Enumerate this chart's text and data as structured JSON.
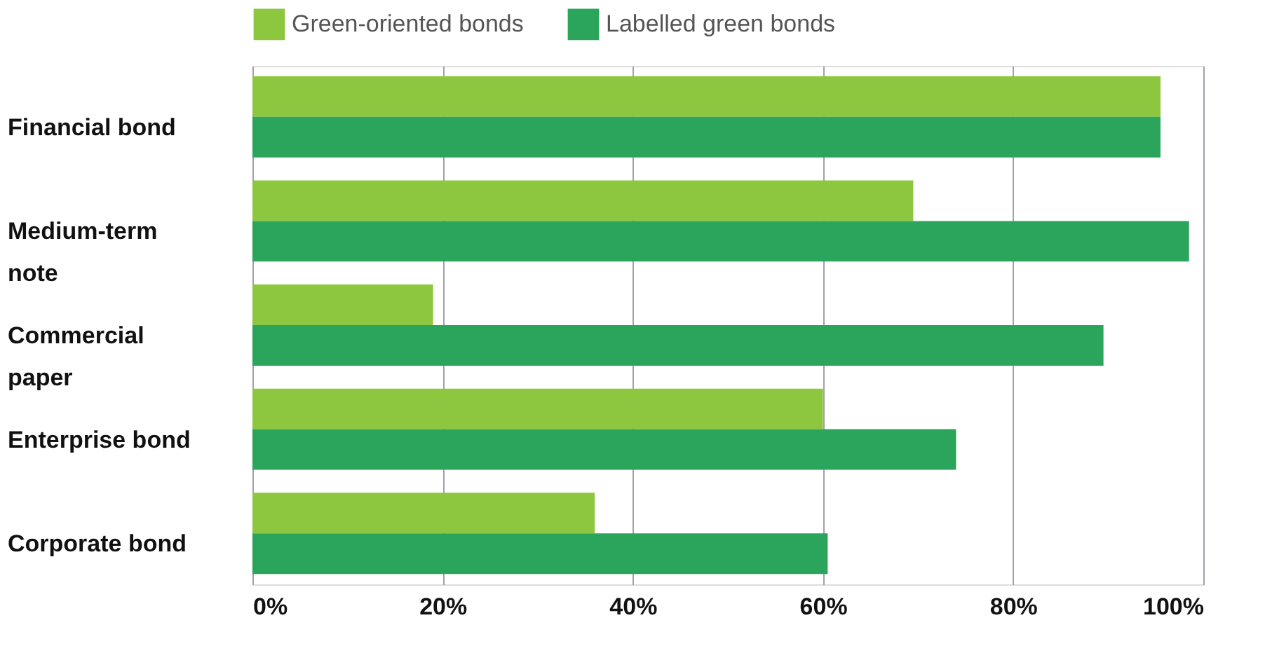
{
  "chart_data": {
    "type": "bar",
    "orientation": "horizontal",
    "categories": [
      "Financial bond",
      "Medium-term note",
      "Commercial paper",
      "Enterprise bond",
      "Corporate bond"
    ],
    "series": [
      {
        "name": "Green-oriented bonds",
        "color": "#8dc63f",
        "values": [
          95.5,
          69.5,
          19,
          60,
          36
        ]
      },
      {
        "name": "Labelled green bonds",
        "color": "#2ba55b",
        "values": [
          95.5,
          98.5,
          89.5,
          74,
          60.5
        ]
      }
    ],
    "xlim": [
      0,
      100
    ],
    "xticks": [
      {
        "value": 0,
        "label": "0%"
      },
      {
        "value": 20,
        "label": "20%"
      },
      {
        "value": 40,
        "label": "40%"
      },
      {
        "value": 60,
        "label": "60%"
      },
      {
        "value": 80,
        "label": "80%"
      },
      {
        "value": 100,
        "label": "100%"
      }
    ],
    "grid": "x",
    "legend": "top"
  }
}
